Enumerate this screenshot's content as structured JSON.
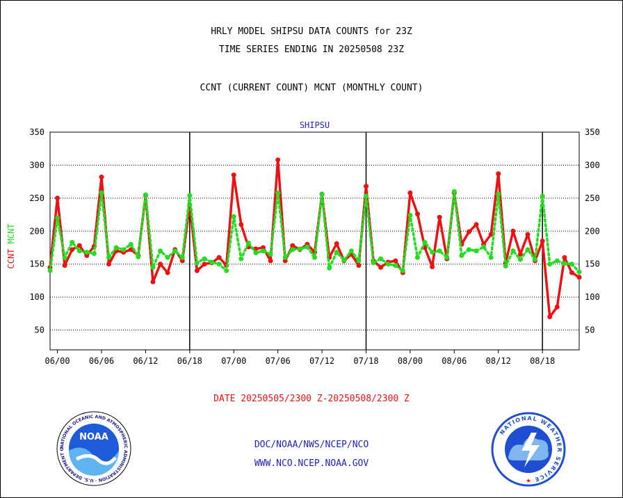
{
  "header": {
    "line1": "HRLY MODEL SHIPSU DATA COUNTS for 23Z",
    "line2": "TIME SERIES ENDING IN 20250508 23Z",
    "line3": "CCNT (CURRENT COUNT) MCNT (MONTHLY COUNT)"
  },
  "footer": {
    "date_range": "DATE 20250505/2300 Z-20250508/2300 Z",
    "org_path": "DOC/NOAA/NWS/NCEP/NCO",
    "website": "WWW.NCO.NCEP.NOAA.GOV"
  },
  "logos": {
    "left_text": "NATIONAL OCEANIC AND ATMOSPHERIC ADMINISTRATION · U.S. DEPARTMENT OF COMMERCE",
    "left_center": "NOAA",
    "right_text": "NATIONAL WEATHER SERVICE"
  },
  "colors": {
    "ccnt": "#ee1111",
    "mcnt": "#22dd22",
    "title_blue": "#2222cc",
    "date_red": "#ee1111",
    "footer_blue": "#1f1fbf"
  },
  "chart_data": {
    "type": "line",
    "title": "SHIPSU",
    "ylabel_left": [
      "CCNT",
      "MCNT"
    ],
    "ylim": [
      20,
      350
    ],
    "yticks": [
      50,
      100,
      150,
      200,
      250,
      300,
      350
    ],
    "xticks": [
      {
        "x": 1,
        "label": "06/00"
      },
      {
        "x": 7,
        "label": "06/06"
      },
      {
        "x": 13,
        "label": "06/12"
      },
      {
        "x": 19,
        "label": "06/18"
      },
      {
        "x": 25,
        "label": "07/00"
      },
      {
        "x": 31,
        "label": "07/06"
      },
      {
        "x": 37,
        "label": "07/12"
      },
      {
        "x": 43,
        "label": "07/18"
      },
      {
        "x": 49,
        "label": "08/00"
      },
      {
        "x": 55,
        "label": "08/06"
      },
      {
        "x": 61,
        "label": "08/12"
      },
      {
        "x": 67,
        "label": "08/18"
      }
    ],
    "day_dividers": [
      19,
      43,
      67
    ],
    "xlim": [
      0,
      72
    ],
    "grid": "horizontal dotted",
    "series": [
      {
        "name": "CCNT",
        "style": "solid",
        "values": [
          145,
          250,
          148,
          172,
          178,
          163,
          177,
          282,
          150,
          170,
          168,
          172,
          163,
          254,
          123,
          150,
          137,
          172,
          155,
          240,
          140,
          150,
          152,
          160,
          148,
          285,
          210,
          176,
          173,
          175,
          155,
          308,
          155,
          178,
          172,
          180,
          168,
          256,
          160,
          181,
          155,
          165,
          148,
          268,
          155,
          145,
          153,
          155,
          137,
          258,
          226,
          175,
          146,
          221,
          158,
          258,
          180,
          199,
          210,
          180,
          195,
          287,
          152,
          200,
          165,
          195,
          155,
          185,
          70,
          85,
          160,
          137,
          130
        ]
      },
      {
        "name": "MCNT",
        "style": "dotted",
        "values": [
          140,
          220,
          160,
          183,
          170,
          168,
          166,
          258,
          160,
          175,
          172,
          180,
          161,
          255,
          145,
          170,
          160,
          170,
          160,
          254,
          152,
          158,
          153,
          150,
          140,
          222,
          158,
          182,
          167,
          170,
          165,
          258,
          160,
          172,
          173,
          176,
          160,
          256,
          144,
          168,
          156,
          170,
          155,
          253,
          152,
          158,
          150,
          148,
          140,
          224,
          160,
          183,
          168,
          170,
          160,
          260,
          163,
          172,
          170,
          176,
          160,
          256,
          147,
          170,
          157,
          172,
          157,
          253,
          150,
          155,
          151,
          150,
          138
        ]
      }
    ]
  }
}
